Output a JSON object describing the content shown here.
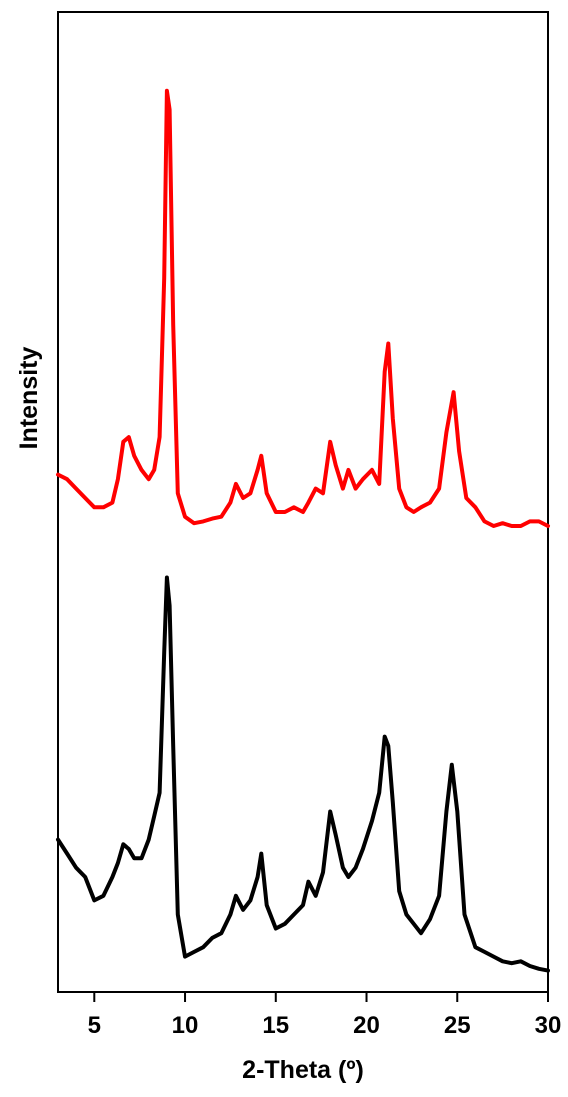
{
  "chart_data": {
    "type": "line",
    "title": "",
    "xlabel": "2-Theta (º)",
    "ylabel": "Intensity",
    "xlim": [
      3,
      30
    ],
    "ylim": [
      0,
      1
    ],
    "x_ticks": [
      5,
      10,
      15,
      20,
      25,
      30
    ],
    "y_ticks_shown": false,
    "grid": false,
    "legend": "none",
    "series": [
      {
        "color": "#ff0000",
        "points": [
          [
            3.0,
            0.54
          ],
          [
            3.5,
            0.535
          ],
          [
            4.0,
            0.525
          ],
          [
            4.5,
            0.515
          ],
          [
            5.0,
            0.505
          ],
          [
            5.5,
            0.505
          ],
          [
            6.0,
            0.51
          ],
          [
            6.3,
            0.535
          ],
          [
            6.6,
            0.575
          ],
          [
            6.9,
            0.58
          ],
          [
            7.2,
            0.56
          ],
          [
            7.6,
            0.545
          ],
          [
            8.0,
            0.535
          ],
          [
            8.3,
            0.545
          ],
          [
            8.6,
            0.58
          ],
          [
            8.85,
            0.75
          ],
          [
            9.0,
            0.95
          ],
          [
            9.15,
            0.93
          ],
          [
            9.35,
            0.7
          ],
          [
            9.6,
            0.52
          ],
          [
            10.0,
            0.495
          ],
          [
            10.5,
            0.488
          ],
          [
            11.0,
            0.49
          ],
          [
            11.5,
            0.493
          ],
          [
            12.0,
            0.495
          ],
          [
            12.5,
            0.51
          ],
          [
            12.8,
            0.53
          ],
          [
            13.2,
            0.515
          ],
          [
            13.6,
            0.52
          ],
          [
            14.0,
            0.545
          ],
          [
            14.2,
            0.56
          ],
          [
            14.5,
            0.52
          ],
          [
            15.0,
            0.5
          ],
          [
            15.5,
            0.5
          ],
          [
            16.0,
            0.505
          ],
          [
            16.5,
            0.5
          ],
          [
            16.8,
            0.51
          ],
          [
            17.2,
            0.525
          ],
          [
            17.6,
            0.52
          ],
          [
            18.0,
            0.575
          ],
          [
            18.3,
            0.55
          ],
          [
            18.7,
            0.525
          ],
          [
            19.0,
            0.545
          ],
          [
            19.4,
            0.525
          ],
          [
            19.8,
            0.535
          ],
          [
            20.3,
            0.545
          ],
          [
            20.7,
            0.53
          ],
          [
            21.0,
            0.65
          ],
          [
            21.2,
            0.68
          ],
          [
            21.45,
            0.6
          ],
          [
            21.8,
            0.525
          ],
          [
            22.2,
            0.505
          ],
          [
            22.6,
            0.5
          ],
          [
            23.0,
            0.505
          ],
          [
            23.5,
            0.51
          ],
          [
            24.0,
            0.525
          ],
          [
            24.4,
            0.585
          ],
          [
            24.8,
            0.628
          ],
          [
            25.1,
            0.565
          ],
          [
            25.5,
            0.515
          ],
          [
            26.0,
            0.505
          ],
          [
            26.5,
            0.49
          ],
          [
            27.0,
            0.485
          ],
          [
            27.5,
            0.488
          ],
          [
            28.0,
            0.485
          ],
          [
            28.5,
            0.485
          ],
          [
            29.0,
            0.49
          ],
          [
            29.5,
            0.49
          ],
          [
            30.0,
            0.485
          ]
        ]
      },
      {
        "color": "#000000",
        "points": [
          [
            3.0,
            0.15
          ],
          [
            3.5,
            0.135
          ],
          [
            4.0,
            0.12
          ],
          [
            4.5,
            0.11
          ],
          [
            5.0,
            0.085
          ],
          [
            5.5,
            0.09
          ],
          [
            6.0,
            0.11
          ],
          [
            6.3,
            0.125
          ],
          [
            6.6,
            0.145
          ],
          [
            6.9,
            0.14
          ],
          [
            7.2,
            0.13
          ],
          [
            7.6,
            0.13
          ],
          [
            8.0,
            0.15
          ],
          [
            8.3,
            0.175
          ],
          [
            8.6,
            0.2
          ],
          [
            8.85,
            0.35
          ],
          [
            9.0,
            0.43
          ],
          [
            9.15,
            0.4
          ],
          [
            9.35,
            0.25
          ],
          [
            9.6,
            0.07
          ],
          [
            10.0,
            0.025
          ],
          [
            10.5,
            0.03
          ],
          [
            11.0,
            0.035
          ],
          [
            11.5,
            0.045
          ],
          [
            12.0,
            0.05
          ],
          [
            12.5,
            0.07
          ],
          [
            12.8,
            0.09
          ],
          [
            13.2,
            0.075
          ],
          [
            13.6,
            0.085
          ],
          [
            14.0,
            0.11
          ],
          [
            14.2,
            0.135
          ],
          [
            14.5,
            0.08
          ],
          [
            15.0,
            0.055
          ],
          [
            15.5,
            0.06
          ],
          [
            16.0,
            0.07
          ],
          [
            16.5,
            0.08
          ],
          [
            16.8,
            0.105
          ],
          [
            17.2,
            0.09
          ],
          [
            17.6,
            0.115
          ],
          [
            18.0,
            0.18
          ],
          [
            18.3,
            0.155
          ],
          [
            18.7,
            0.12
          ],
          [
            19.0,
            0.11
          ],
          [
            19.4,
            0.12
          ],
          [
            19.8,
            0.14
          ],
          [
            20.3,
            0.17
          ],
          [
            20.7,
            0.2
          ],
          [
            21.0,
            0.26
          ],
          [
            21.2,
            0.25
          ],
          [
            21.45,
            0.19
          ],
          [
            21.8,
            0.095
          ],
          [
            22.2,
            0.07
          ],
          [
            22.6,
            0.06
          ],
          [
            23.0,
            0.05
          ],
          [
            23.5,
            0.065
          ],
          [
            24.0,
            0.09
          ],
          [
            24.4,
            0.18
          ],
          [
            24.7,
            0.23
          ],
          [
            25.0,
            0.18
          ],
          [
            25.4,
            0.07
          ],
          [
            26.0,
            0.035
          ],
          [
            26.5,
            0.03
          ],
          [
            27.0,
            0.025
          ],
          [
            27.5,
            0.02
          ],
          [
            28.0,
            0.018
          ],
          [
            28.5,
            0.02
          ],
          [
            29.0,
            0.015
          ],
          [
            29.5,
            0.012
          ],
          [
            30.0,
            0.01
          ]
        ]
      }
    ]
  }
}
